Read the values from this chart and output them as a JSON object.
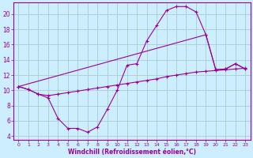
{
  "xlabel": "Windchill (Refroidissement éolien,°C)",
  "background_color": "#cceeff",
  "grid_color": "#aacccc",
  "line_color": "#990099",
  "xlim": [
    -0.5,
    23.5
  ],
  "ylim": [
    3.5,
    21.5
  ],
  "yticks": [
    4,
    6,
    8,
    10,
    12,
    14,
    16,
    18,
    20
  ],
  "xticks": [
    0,
    1,
    2,
    3,
    4,
    5,
    6,
    7,
    8,
    9,
    10,
    11,
    12,
    13,
    14,
    15,
    16,
    17,
    18,
    19,
    20,
    21,
    22,
    23
  ],
  "s1_x": [
    0,
    1,
    2,
    3,
    4,
    5,
    6,
    7,
    8,
    9,
    10,
    11,
    12,
    13,
    14,
    15,
    16,
    17,
    18,
    19,
    20,
    21,
    22,
    23
  ],
  "s1_y": [
    10.5,
    10.1,
    9.5,
    9.0,
    6.3,
    5.0,
    5.0,
    4.5,
    5.2,
    7.5,
    10.0,
    13.3,
    13.5,
    16.5,
    18.5,
    20.5,
    21.0,
    21.0,
    20.3,
    17.3,
    12.7,
    12.8,
    13.5,
    12.8
  ],
  "s2_x": [
    0,
    1,
    2,
    3,
    4,
    5,
    6,
    7,
    8,
    9,
    10,
    11,
    12,
    13,
    14,
    15,
    16,
    17,
    18,
    19,
    20,
    21,
    22,
    23
  ],
  "s2_y": [
    10.5,
    10.1,
    9.5,
    9.3,
    9.5,
    9.7,
    9.9,
    10.1,
    10.3,
    10.5,
    10.7,
    10.9,
    11.1,
    11.3,
    11.5,
    11.8,
    12.0,
    12.2,
    12.4,
    12.5,
    12.6,
    12.7,
    12.8,
    12.9
  ],
  "s3_x": [
    0,
    19,
    20,
    21,
    22,
    23
  ],
  "s3_y": [
    10.5,
    17.3,
    12.7,
    12.8,
    13.5,
    12.8
  ]
}
